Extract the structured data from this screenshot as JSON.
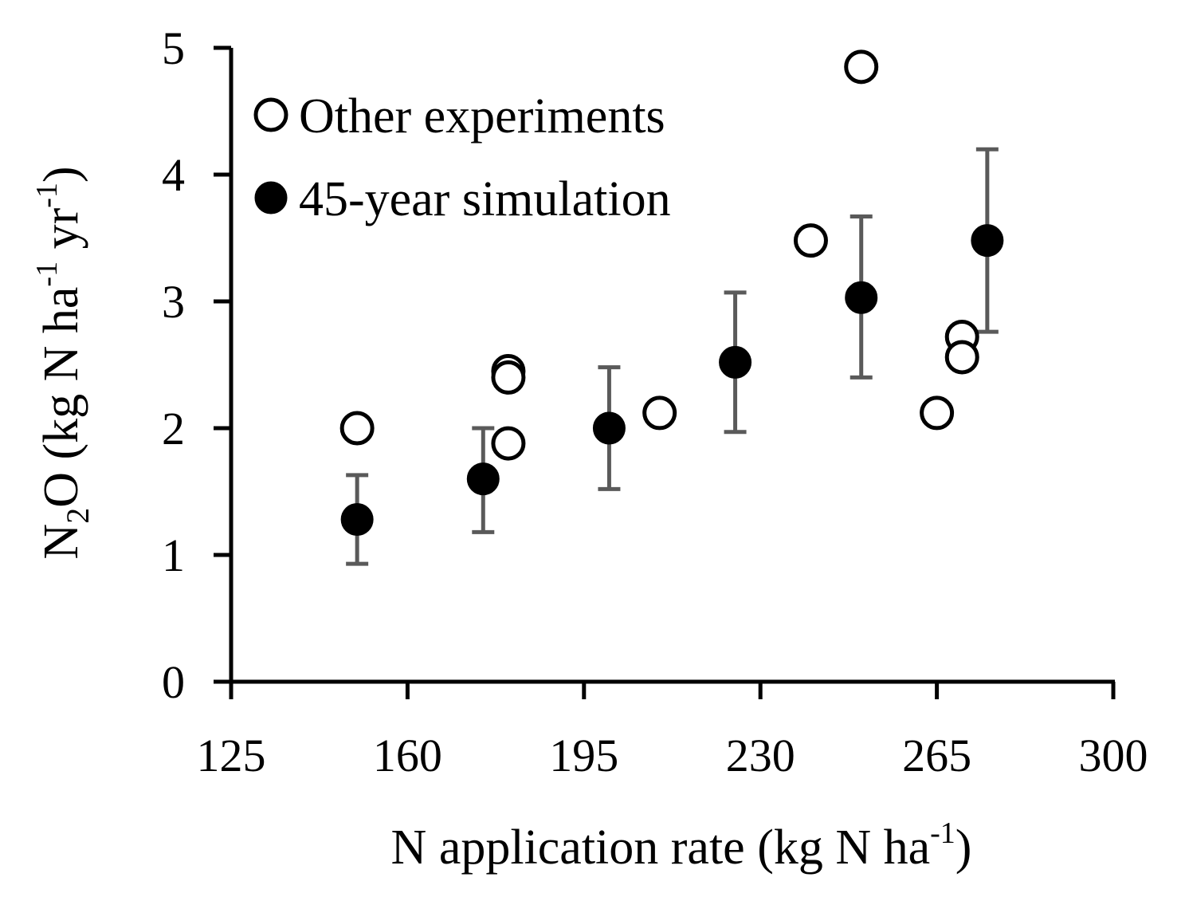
{
  "chart_data": {
    "type": "scatter",
    "title": "",
    "xlabel": {
      "main": "N application rate (kg N ha",
      "sup": "-1",
      "close": ")"
    },
    "ylabel": {
      "n": "N",
      "sub": "2",
      "rest": "O (kg N ha",
      "sup1": "-1",
      "mid": " yr",
      "sup2": "-1",
      "close": ")"
    },
    "xlim": [
      125,
      300
    ],
    "ylim": [
      0,
      5
    ],
    "x_ticks": [
      125,
      160,
      195,
      230,
      265,
      300
    ],
    "y_ticks": [
      0,
      1,
      2,
      3,
      4,
      5
    ],
    "grid": false,
    "legend_position": "top-left",
    "series": [
      {
        "name": "Other experiments",
        "marker": "open-circle",
        "points": [
          {
            "x": 150,
            "y": 2.0
          },
          {
            "x": 180,
            "y": 2.45
          },
          {
            "x": 180,
            "y": 2.4
          },
          {
            "x": 180,
            "y": 1.88
          },
          {
            "x": 210,
            "y": 2.12
          },
          {
            "x": 240,
            "y": 3.48
          },
          {
            "x": 250,
            "y": 4.85
          },
          {
            "x": 265,
            "y": 2.12
          },
          {
            "x": 270,
            "y": 2.72
          },
          {
            "x": 270,
            "y": 2.56
          }
        ]
      },
      {
        "name": "45-year simulation",
        "marker": "filled-circle",
        "points": [
          {
            "x": 150,
            "y": 1.28,
            "err_low": 0.93,
            "err_high": 1.63
          },
          {
            "x": 175,
            "y": 1.6,
            "err_low": 1.18,
            "err_high": 2.0
          },
          {
            "x": 200,
            "y": 2.0,
            "err_low": 1.52,
            "err_high": 2.48
          },
          {
            "x": 225,
            "y": 2.52,
            "err_low": 1.97,
            "err_high": 3.07
          },
          {
            "x": 250,
            "y": 3.03,
            "err_low": 2.4,
            "err_high": 3.67
          },
          {
            "x": 275,
            "y": 3.48,
            "err_low": 2.76,
            "err_high": 4.2
          }
        ]
      }
    ]
  }
}
